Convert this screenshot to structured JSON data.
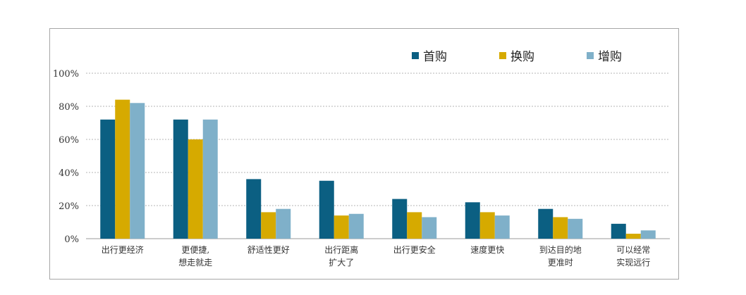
{
  "chart_data": {
    "type": "bar",
    "categories": [
      [
        "出行更经济"
      ],
      [
        "更便捷,",
        "想走就走"
      ],
      [
        "舒适性更好"
      ],
      [
        "出行距离",
        "扩大了"
      ],
      [
        "出行更安全"
      ],
      [
        "速度更快"
      ],
      [
        "到达目的地",
        "更准时"
      ],
      [
        "可以经常",
        "实现远行"
      ]
    ],
    "series": [
      {
        "name": "首购",
        "color": "#0b5f82",
        "values": [
          72,
          72,
          36,
          35,
          24,
          22,
          18,
          9
        ]
      },
      {
        "name": "换购",
        "color": "#d6aa00",
        "values": [
          84,
          60,
          16,
          14,
          16,
          16,
          13,
          3
        ]
      },
      {
        "name": "增购",
        "color": "#7fb0c9",
        "values": [
          82,
          72,
          18,
          15,
          13,
          14,
          12,
          5
        ]
      }
    ],
    "ylim": [
      0,
      100
    ],
    "yticks": [
      "0%",
      "20%",
      "40%",
      "60%",
      "80%",
      "100%"
    ],
    "grid": true,
    "legend_position": "top-right"
  }
}
